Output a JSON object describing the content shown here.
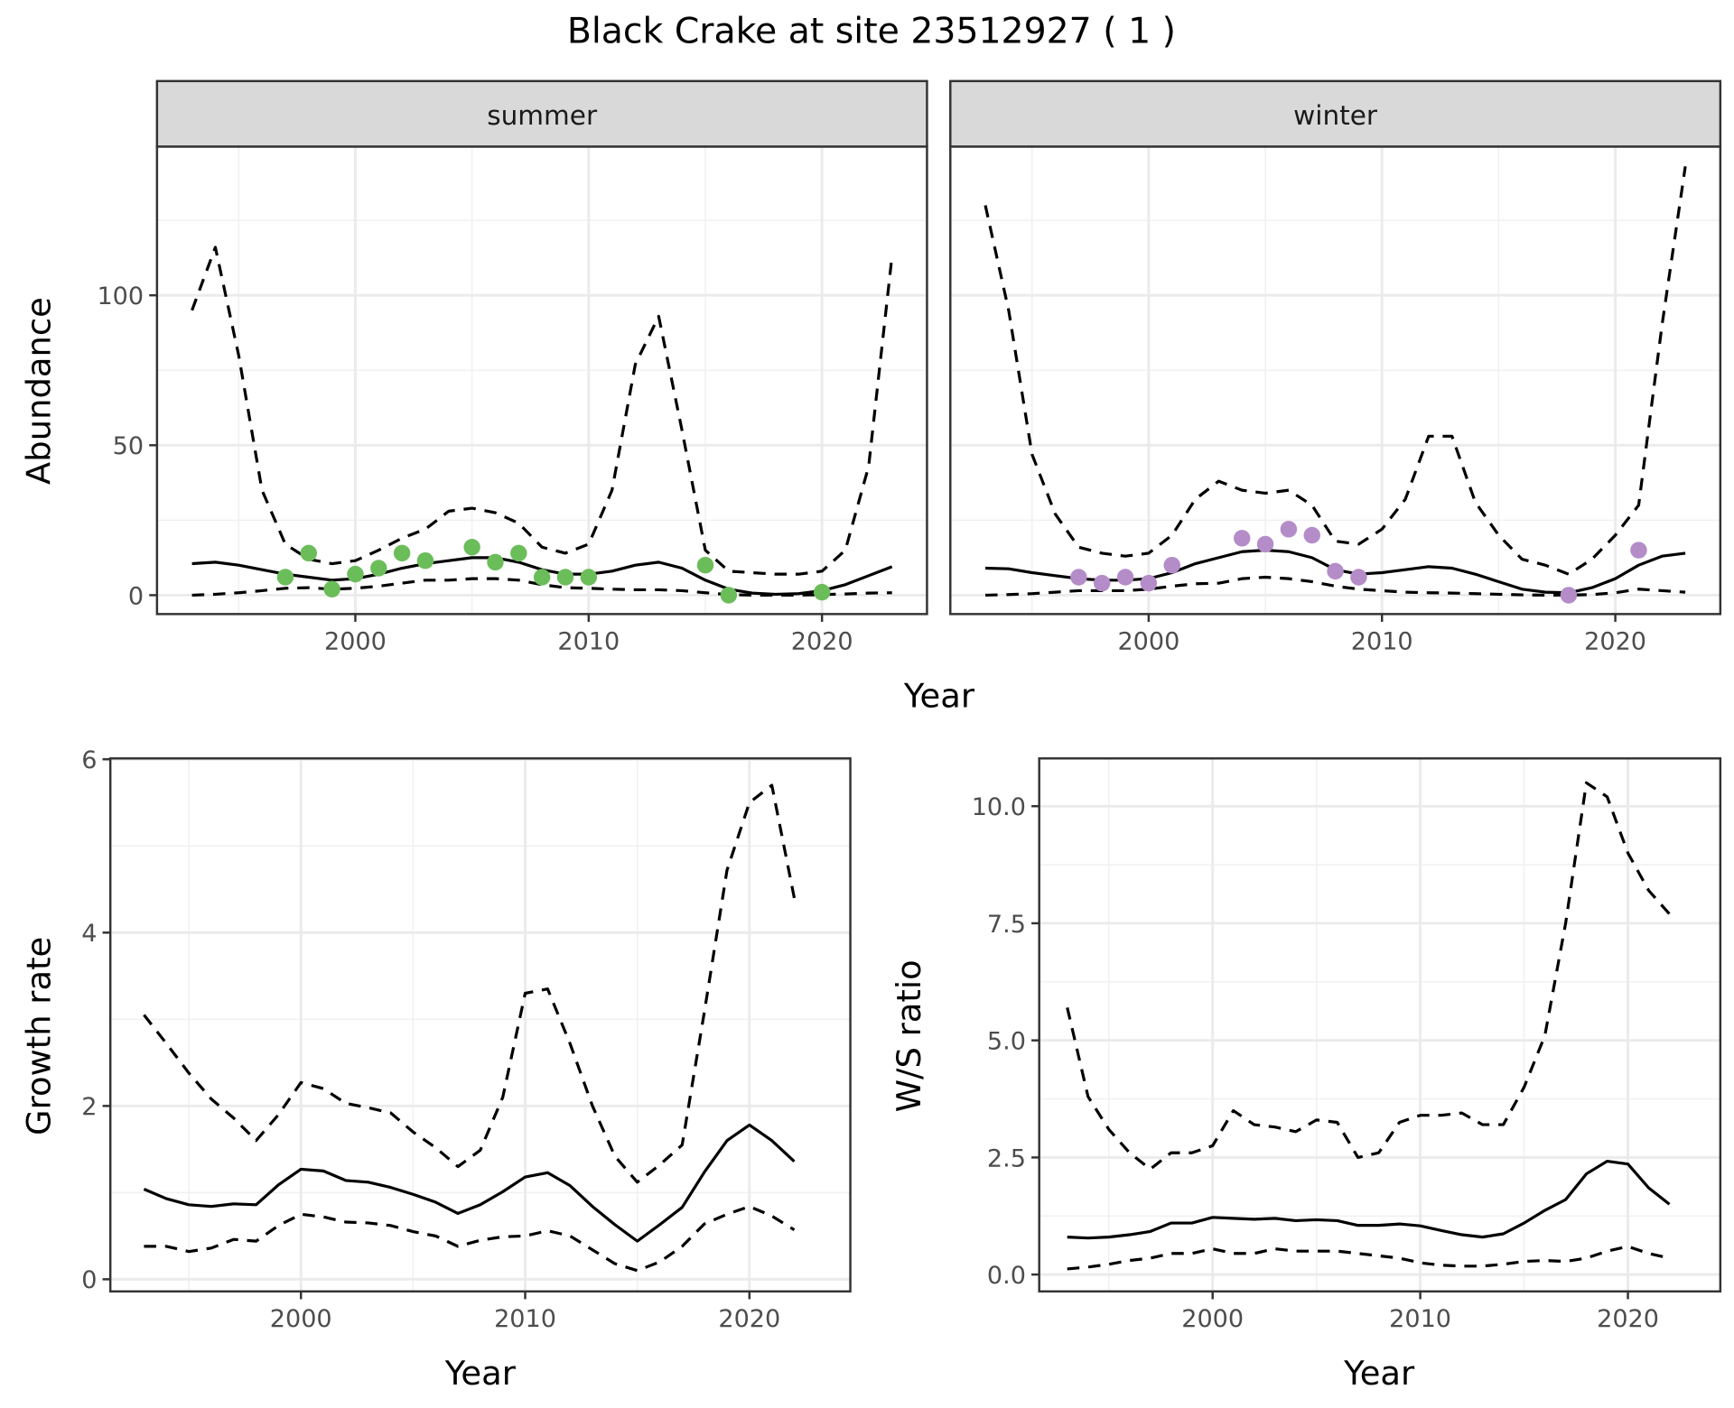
{
  "title": "Black Crake at site 23512927 ( 1 )",
  "chart_data": [
    {
      "type": "line",
      "facet": "summer",
      "y_label": "Abundance",
      "x_label": "Year",
      "x": [
        1993,
        1994,
        1995,
        1996,
        1997,
        1998,
        1999,
        2000,
        2001,
        2002,
        2003,
        2004,
        2005,
        2006,
        2007,
        2008,
        2009,
        2010,
        2011,
        2012,
        2013,
        2014,
        2015,
        2016,
        2017,
        2018,
        2019,
        2020,
        2021,
        2022,
        2023
      ],
      "xlim": [
        1991.5,
        2024.5
      ],
      "xticks": [
        2000,
        2010,
        2020
      ],
      "x_minor_ticks": [
        1995,
        2005,
        2015
      ],
      "ylim": [
        -6.3,
        149.6
      ],
      "yticks": [
        0,
        50,
        100
      ],
      "y_minor_ticks": [
        25,
        75,
        125
      ],
      "show_ytick_labels": true,
      "grid": true,
      "series": [
        {
          "style": "solid",
          "color": "#000000",
          "values": [
            10.5,
            11,
            10,
            8.5,
            7,
            6,
            5,
            5.5,
            7,
            9,
            10.5,
            11.5,
            12.5,
            12.5,
            11,
            8.5,
            7,
            7,
            8,
            10,
            11,
            9,
            5,
            2,
            0.7,
            0.3,
            0.5,
            1.5,
            3.5,
            6.5,
            9.5
          ]
        },
        {
          "style": "dashed",
          "color": "#000000",
          "values": [
            95,
            116,
            80,
            35,
            17,
            12,
            10.5,
            11.5,
            15,
            19,
            22,
            28,
            29,
            27.5,
            24,
            16,
            14,
            17,
            35,
            77,
            93,
            55,
            15,
            8,
            7.5,
            7,
            7,
            8,
            15,
            43,
            113
          ]
        },
        {
          "style": "dashed",
          "color": "#000000",
          "values": [
            0,
            0.3,
            0.8,
            1.5,
            2.3,
            2.5,
            2,
            2.3,
            3,
            4,
            5,
            5,
            5.5,
            5.5,
            5,
            3.5,
            2.5,
            2.3,
            2,
            1.8,
            1.8,
            1.5,
            0.8,
            0.2,
            0,
            0,
            0,
            0.2,
            0.4,
            0.7,
            0.8
          ]
        },
        {
          "style": "points",
          "color": "#6bbd5a",
          "x": [
            1997,
            1998,
            1999,
            2000,
            2001,
            2002,
            2003,
            2005,
            2006,
            2007,
            2008,
            2009,
            2010,
            2015,
            2016,
            2020
          ],
          "values": [
            6,
            14,
            2,
            7,
            9,
            14,
            11.5,
            16,
            11,
            14,
            6,
            6,
            6,
            10,
            0,
            1
          ]
        }
      ]
    },
    {
      "type": "line",
      "facet": "winter",
      "x": [
        1993,
        1994,
        1995,
        1996,
        1997,
        1998,
        1999,
        2000,
        2001,
        2002,
        2003,
        2004,
        2005,
        2006,
        2007,
        2008,
        2009,
        2010,
        2011,
        2012,
        2013,
        2014,
        2015,
        2016,
        2017,
        2018,
        2019,
        2020,
        2021,
        2022,
        2023
      ],
      "xlim": [
        1991.5,
        2024.5
      ],
      "xticks": [
        2000,
        2010,
        2020
      ],
      "x_minor_ticks": [
        1995,
        2005,
        2015
      ],
      "ylim": [
        -6.3,
        149.6
      ],
      "yticks": [
        0,
        50,
        100
      ],
      "y_minor_ticks": [
        25,
        75,
        125
      ],
      "show_ytick_labels": false,
      "grid": true,
      "series": [
        {
          "style": "solid",
          "color": "#000000",
          "values": [
            9,
            8.8,
            7.5,
            6.5,
            5.5,
            5,
            5,
            5.5,
            7.5,
            10.5,
            12.5,
            14.5,
            15,
            14.5,
            12.5,
            8.5,
            7,
            7.5,
            8.5,
            9.5,
            9,
            7,
            4.5,
            2,
            1,
            0.8,
            2.5,
            5.5,
            10,
            13,
            14
          ]
        },
        {
          "style": "dashed",
          "color": "#000000",
          "values": [
            130,
            95,
            47,
            27,
            16,
            14,
            13,
            14,
            20,
            32,
            38,
            35,
            34,
            35,
            30,
            18,
            17,
            22,
            32,
            53,
            53,
            31,
            20,
            12,
            10,
            7,
            12,
            20,
            30,
            90,
            143
          ]
        },
        {
          "style": "dashed",
          "color": "#000000",
          "values": [
            0,
            0.2,
            0.5,
            1,
            1.5,
            1.5,
            1.5,
            2,
            3,
            3.8,
            4,
            5.5,
            6,
            5.5,
            4.5,
            3,
            2,
            1.5,
            1,
            0.8,
            0.7,
            0.5,
            0.3,
            0.1,
            0,
            0,
            0.2,
            0.8,
            2,
            1.5,
            1
          ]
        },
        {
          "style": "points",
          "color": "#b48cc8",
          "x": [
            1997,
            1998,
            1999,
            2000,
            2001,
            2004,
            2005,
            2006,
            2007,
            2008,
            2009,
            2018,
            2021
          ],
          "values": [
            6,
            4,
            6,
            4,
            10,
            19,
            17,
            22,
            20,
            8,
            6,
            0,
            15
          ]
        }
      ]
    },
    {
      "type": "line",
      "y_label": "Growth rate",
      "x_label": "Year",
      "x": [
        1993,
        1994,
        1995,
        1996,
        1997,
        1998,
        1999,
        2000,
        2001,
        2002,
        2003,
        2004,
        2005,
        2006,
        2007,
        2008,
        2009,
        2010,
        2011,
        2012,
        2013,
        2014,
        2015,
        2016,
        2017,
        2018,
        2019,
        2020,
        2021,
        2022
      ],
      "xlim": [
        1991.5,
        2024.5
      ],
      "xticks": [
        2000,
        2010,
        2020
      ],
      "x_minor_ticks": [
        1995,
        2005,
        2015
      ],
      "ylim": [
        -0.14,
        6.01
      ],
      "yticks": [
        0,
        2,
        4,
        6
      ],
      "y_minor_ticks": [
        1,
        3,
        5
      ],
      "show_ytick_labels": true,
      "grid": true,
      "series": [
        {
          "style": "solid",
          "color": "#000000",
          "values": [
            1.04,
            0.93,
            0.86,
            0.84,
            0.87,
            0.86,
            1.09,
            1.27,
            1.25,
            1.14,
            1.12,
            1.06,
            0.98,
            0.89,
            0.76,
            0.86,
            1.01,
            1.18,
            1.23,
            1.08,
            0.84,
            0.63,
            0.44,
            0.63,
            0.83,
            1.24,
            1.6,
            1.78,
            1.6,
            1.36
          ]
        },
        {
          "style": "dashed",
          "color": "#000000",
          "values": [
            3.05,
            2.72,
            2.38,
            2.08,
            1.86,
            1.6,
            1.9,
            2.27,
            2.2,
            2.03,
            1.98,
            1.92,
            1.7,
            1.52,
            1.3,
            1.49,
            2.1,
            3.3,
            3.35,
            2.72,
            2.0,
            1.42,
            1.12,
            1.32,
            1.55,
            3.1,
            4.72,
            5.5,
            5.7,
            4.4
          ]
        },
        {
          "style": "dashed",
          "color": "#000000",
          "values": [
            0.38,
            0.38,
            0.32,
            0.36,
            0.46,
            0.44,
            0.62,
            0.75,
            0.72,
            0.66,
            0.65,
            0.62,
            0.55,
            0.5,
            0.38,
            0.45,
            0.49,
            0.5,
            0.56,
            0.5,
            0.34,
            0.18,
            0.1,
            0.2,
            0.38,
            0.64,
            0.75,
            0.84,
            0.73,
            0.57
          ]
        }
      ]
    },
    {
      "type": "line",
      "y_label": "W/S ratio",
      "x_label": "Year",
      "x": [
        1993,
        1994,
        1995,
        1996,
        1997,
        1998,
        1999,
        2000,
        2001,
        2002,
        2003,
        2004,
        2005,
        2006,
        2007,
        2008,
        2009,
        2010,
        2011,
        2012,
        2013,
        2014,
        2015,
        2016,
        2017,
        2018,
        2019,
        2020,
        2021,
        2022
      ],
      "xlim": [
        1991.65,
        2024.45
      ],
      "xticks": [
        2000,
        2010,
        2020
      ],
      "x_minor_ticks": [
        1995,
        2005,
        2015
      ],
      "ylim": [
        -0.36,
        11.02
      ],
      "yticks": [
        {
          "value": 0,
          "label": "0.0"
        },
        2.5,
        {
          "value": 5,
          "label": "5.0"
        },
        7.5,
        {
          "value": 10,
          "label": "10.0"
        }
      ],
      "y_minor_ticks": [
        1.25,
        3.75,
        6.25,
        8.75
      ],
      "show_ytick_labels": true,
      "grid": true,
      "series": [
        {
          "style": "solid",
          "color": "#000000",
          "values": [
            0.8,
            0.78,
            0.8,
            0.85,
            0.92,
            1.1,
            1.1,
            1.22,
            1.2,
            1.18,
            1.2,
            1.15,
            1.17,
            1.15,
            1.05,
            1.05,
            1.08,
            1.04,
            0.94,
            0.85,
            0.8,
            0.87,
            1.1,
            1.37,
            1.6,
            2.15,
            2.42,
            2.36,
            1.85,
            1.5
          ]
        },
        {
          "style": "dashed",
          "color": "#000000",
          "values": [
            5.7,
            3.8,
            3.1,
            2.6,
            2.25,
            2.6,
            2.6,
            2.75,
            3.5,
            3.2,
            3.15,
            3.05,
            3.3,
            3.25,
            2.5,
            2.6,
            3.25,
            3.4,
            3.4,
            3.45,
            3.2,
            3.2,
            4.0,
            5.1,
            7.5,
            10.5,
            10.2,
            9.0,
            8.2,
            7.7
          ]
        },
        {
          "style": "dashed",
          "color": "#000000",
          "values": [
            0.12,
            0.16,
            0.22,
            0.3,
            0.35,
            0.45,
            0.45,
            0.55,
            0.45,
            0.45,
            0.55,
            0.5,
            0.5,
            0.5,
            0.45,
            0.4,
            0.35,
            0.25,
            0.2,
            0.18,
            0.18,
            0.22,
            0.28,
            0.3,
            0.28,
            0.35,
            0.5,
            0.6,
            0.45,
            0.35
          ]
        }
      ]
    }
  ]
}
